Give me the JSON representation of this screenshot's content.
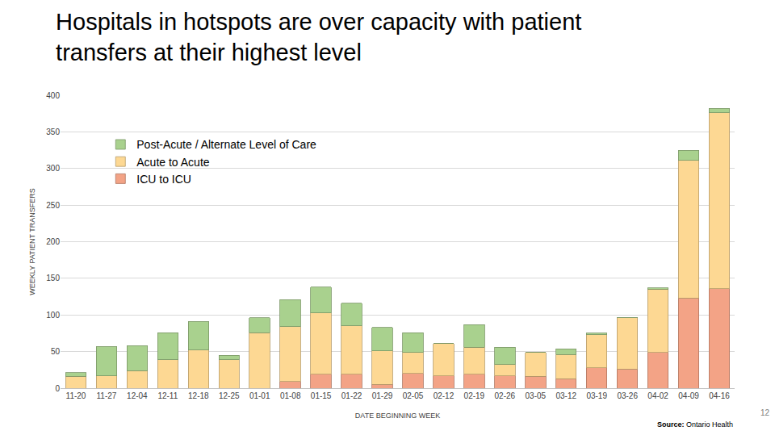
{
  "chart_data": {
    "type": "bar",
    "title": "Hospitals in hotspots are over capacity with patient transfers at their highest level",
    "x_label": "DATE BEGINNING WEEK",
    "y_label": "WEEKLY PATIENT TRANSFERS",
    "source_label": "Source:",
    "source": "Ontario Health",
    "page_number": "12",
    "stacked": true,
    "grid": true,
    "legend": "upper left",
    "categories": [
      "11-20",
      "11-27",
      "12-04",
      "12-11",
      "12-18",
      "12-25",
      "01-01",
      "01-08",
      "01-15",
      "01-22",
      "01-29",
      "02-05",
      "02-12",
      "02-19",
      "02-26",
      "03-05",
      "03-12",
      "03-19",
      "03-26",
      "04-02",
      "04-09",
      "04-16"
    ],
    "series": [
      {
        "name": "ICU to ICU",
        "color": "#f3a386",
        "values": [
          0,
          0,
          0,
          0,
          0,
          0,
          0,
          9,
          19,
          19,
          5,
          20,
          17,
          19,
          17,
          16,
          13,
          28,
          26,
          49,
          123,
          136
        ]
      },
      {
        "name": "Acute to Acute",
        "color": "#fdd893",
        "values": [
          16,
          17,
          24,
          39,
          52,
          39,
          76,
          75,
          84,
          66,
          46,
          29,
          44,
          37,
          15,
          33,
          33,
          45,
          70,
          86,
          188,
          240
        ]
      },
      {
        "name": "Post-Acute / Alternate Level of Care",
        "color": "#a9d18e",
        "values": [
          5,
          40,
          34,
          37,
          39,
          6,
          20,
          37,
          35,
          31,
          32,
          27,
          0,
          31,
          24,
          0,
          8,
          2,
          0,
          2,
          14,
          6
        ]
      }
    ],
    "ylim": [
      0,
      400
    ],
    "yticks": [
      0,
      50,
      100,
      150,
      200,
      250,
      300,
      350,
      400
    ]
  }
}
